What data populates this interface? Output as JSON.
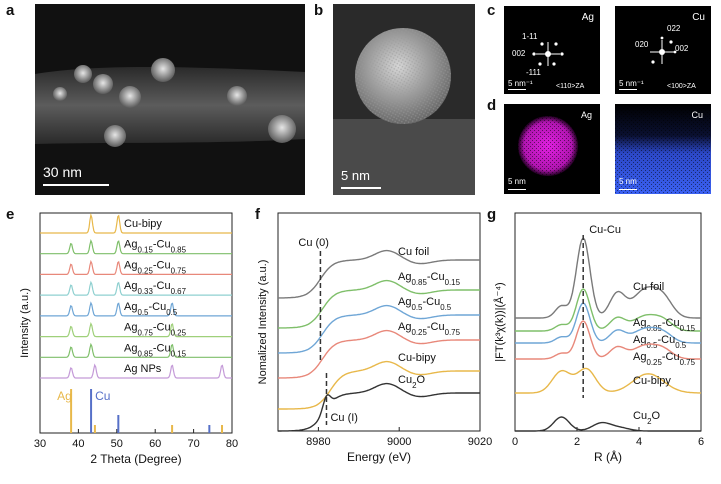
{
  "panel_labels": {
    "a": "a",
    "b": "b",
    "c": "c",
    "d": "d",
    "e": "e",
    "f": "f",
    "g": "g"
  },
  "panel_a": {
    "scale": "30 nm"
  },
  "panel_b": {
    "scale": "5 nm"
  },
  "panel_c": {
    "ag": {
      "title": "Ag",
      "spots": [
        "1-11",
        "002",
        "-111"
      ],
      "scale": "5 nm⁻¹",
      "zone": "<110>ZA"
    },
    "cu": {
      "title": "Cu",
      "spots": [
        "022",
        "020",
        "002"
      ],
      "scale": "5 nm⁻¹",
      "zone": "<100>ZA"
    }
  },
  "panel_d": {
    "ag": {
      "title": "Ag",
      "scale": "5 nm",
      "color": "#d21ad2"
    },
    "cu": {
      "title": "Cu",
      "scale": "5 nm",
      "color": "#3a5ef0"
    }
  },
  "chart_data": [
    {
      "type": "line",
      "panel": "e",
      "xlabel": "2 Theta (Degree)",
      "ylabel": "Intensity (a.u.)",
      "xlim": [
        30,
        80
      ],
      "xticks": [
        "30",
        "40",
        "50",
        "60",
        "70",
        "80"
      ],
      "series": [
        {
          "name": "Cu-bipy",
          "color": "#e8b84a",
          "peaks": [
            43.3,
            50.4
          ]
        },
        {
          "name": "Ag0.15-Cu0.85",
          "color": "#7fbf6a",
          "peaks": [
            38.1,
            43.3,
            50.4
          ]
        },
        {
          "name": "Ag0.25-Cu0.75",
          "color": "#e8887a",
          "peaks": [
            38.1,
            43.3,
            50.4
          ]
        },
        {
          "name": "Ag0.33-Cu0.67",
          "color": "#8fd0d0",
          "peaks": [
            38.1,
            43.3,
            50.4
          ]
        },
        {
          "name": "Ag0.5-Cu0.5",
          "color": "#6fa6d6",
          "peaks": [
            38.1,
            43.3,
            50.4,
            64.4
          ]
        },
        {
          "name": "Ag0.75-Cu0.25",
          "color": "#9fd07a",
          "peaks": [
            38.1,
            43.3,
            64.4
          ]
        },
        {
          "name": "Ag0.85-Cu0.15",
          "color": "#7fbf6a",
          "peaks": [
            38.1,
            43.3,
            64.4
          ]
        },
        {
          "name": "Ag NPs",
          "color": "#c49ad8",
          "peaks": [
            38.1,
            44.3,
            64.4,
            77.4
          ]
        }
      ],
      "reference": {
        "ag": {
          "label": "Ag",
          "color": "#e8b84a",
          "positions": [
            38.1,
            44.3,
            64.4,
            77.4
          ]
        },
        "cu": {
          "label": "Cu",
          "color": "#5670c8",
          "positions": [
            43.3,
            50.4,
            74.1
          ]
        }
      }
    },
    {
      "type": "line",
      "panel": "f",
      "xlabel": "Energy (eV)",
      "ylabel": "Nomalized Intensity (a.u.)",
      "xlim": [
        8970,
        9020
      ],
      "xticks": [
        "8980",
        "9000",
        "9020"
      ],
      "series": [
        {
          "name": "Cu foil",
          "color": "#7a7a7a"
        },
        {
          "name": "Ag0.85-Cu0.15",
          "color": "#7fbf6a"
        },
        {
          "name": "Ag0.5-Cu0.5",
          "color": "#6fa6d6"
        },
        {
          "name": "Ag0.25-Cu0.75",
          "color": "#e8887a"
        },
        {
          "name": "Cu-bipy",
          "color": "#e8b84a"
        },
        {
          "name": "Cu2O",
          "color": "#333333"
        }
      ],
      "annotations": [
        {
          "text": "Cu (0)",
          "x": 8980.5
        },
        {
          "text": "Cu (I)",
          "x": 8982
        }
      ]
    },
    {
      "type": "line",
      "panel": "g",
      "xlabel": "R (Å)",
      "ylabel": "|FT(k³χ(k))|(Å⁻⁴)",
      "xlim": [
        0,
        6
      ],
      "xticks": [
        "0",
        "2",
        "4",
        "6"
      ],
      "series": [
        {
          "name": "Cu foil",
          "color": "#7a7a7a"
        },
        {
          "name": "Ag0.85-Cu0.15",
          "color": "#7fbf6a"
        },
        {
          "name": "Ag0.5-Cu0.5",
          "color": "#6fa6d6"
        },
        {
          "name": "Ag0.25-Cu0.75",
          "color": "#e8887a"
        },
        {
          "name": "Cu-bipy",
          "color": "#e8b84a"
        },
        {
          "name": "Cu2O",
          "color": "#333333"
        }
      ],
      "annotations": [
        {
          "text": "Cu-Cu",
          "x": 2.2
        }
      ]
    }
  ]
}
